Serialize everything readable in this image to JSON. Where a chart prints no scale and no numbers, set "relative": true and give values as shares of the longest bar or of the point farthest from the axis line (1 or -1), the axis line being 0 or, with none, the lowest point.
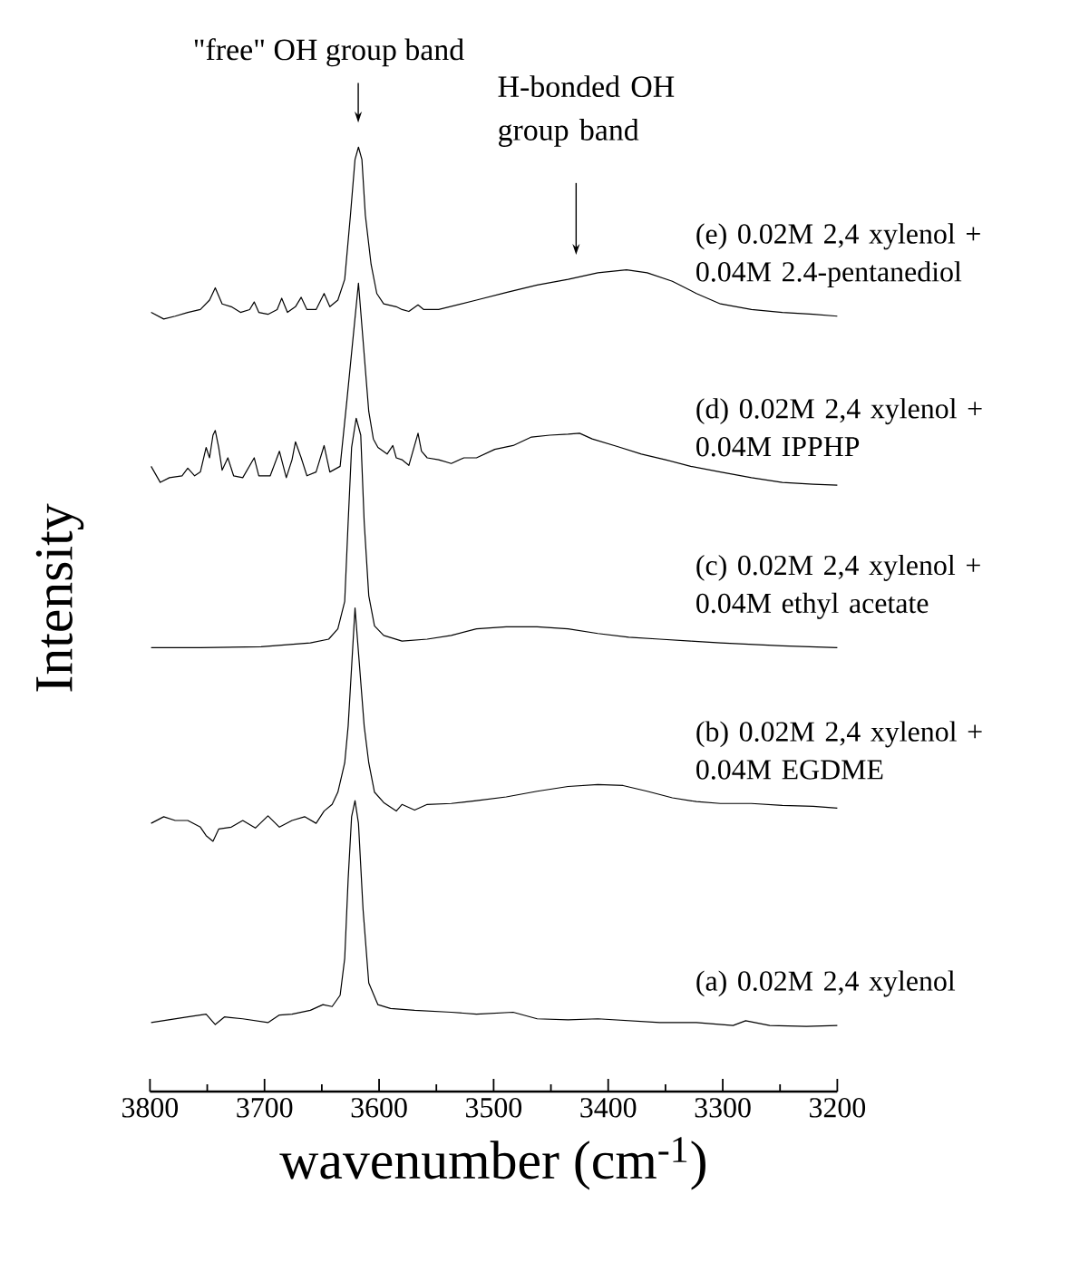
{
  "chart_data": {
    "type": "line",
    "xlabel": "wavenumber (cm$^{-1}$)",
    "ylabel": "Intensity",
    "relative": true,
    "xlim": [
      3800,
      3200
    ],
    "xticks": [
      3800,
      3700,
      3600,
      3500,
      3400,
      3300,
      3200
    ],
    "annotations": [
      "\"free\" OH group band",
      "H-bonded OH group band"
    ],
    "series": [
      {
        "name": "(e) 0.02M 2,4 xylenol + 0.04M 2.4-pentanediol",
        "color": "#000000",
        "x": [
          3799,
          3788,
          3778,
          3767,
          3756,
          3748,
          3743,
          3737,
          3729,
          3721,
          3713,
          3709,
          3705,
          3697,
          3689,
          3685,
          3680,
          3673,
          3668,
          3663,
          3655,
          3648,
          3643,
          3636,
          3630,
          3625,
          3621,
          3618,
          3615,
          3612,
          3607,
          3602,
          3596,
          3585,
          3580,
          3574,
          3566,
          3561,
          3548,
          3515,
          3489,
          3462,
          3435,
          3409,
          3384,
          3366,
          3344,
          3323,
          3302,
          3275,
          3248,
          3221,
          3200
        ],
        "values": [
          0.825,
          0.818,
          0.821,
          0.825,
          0.828,
          0.838,
          0.851,
          0.834,
          0.831,
          0.825,
          0.828,
          0.836,
          0.825,
          0.823,
          0.828,
          0.84,
          0.825,
          0.831,
          0.841,
          0.828,
          0.828,
          0.845,
          0.831,
          0.838,
          0.86,
          0.928,
          0.987,
          1.0,
          0.987,
          0.928,
          0.876,
          0.845,
          0.834,
          0.831,
          0.828,
          0.826,
          0.833,
          0.828,
          0.828,
          0.838,
          0.846,
          0.854,
          0.86,
          0.867,
          0.87,
          0.867,
          0.858,
          0.845,
          0.834,
          0.828,
          0.825,
          0.823,
          0.821
        ]
      },
      {
        "name": "(d) 0.02M 2,4 xylenol + 0.04M IPPHP",
        "color": "#000000",
        "x": [
          3799,
          3791,
          3783,
          3772,
          3767,
          3761,
          3756,
          3751,
          3748,
          3745,
          3743,
          3740,
          3737,
          3732,
          3727,
          3719,
          3709,
          3705,
          3695,
          3687,
          3681,
          3676,
          3673,
          3668,
          3663,
          3655,
          3648,
          3643,
          3634,
          3628,
          3618,
          3609,
          3605,
          3601,
          3593,
          3588,
          3585,
          3580,
          3574,
          3566,
          3563,
          3558,
          3548,
          3537,
          3526,
          3515,
          3499,
          3483,
          3467,
          3451,
          3435,
          3425,
          3414,
          3392,
          3371,
          3350,
          3328,
          3302,
          3275,
          3248,
          3221,
          3200
        ],
        "values": [
          0.662,
          0.645,
          0.65,
          0.652,
          0.66,
          0.652,
          0.656,
          0.682,
          0.671,
          0.695,
          0.7,
          0.682,
          0.658,
          0.671,
          0.652,
          0.65,
          0.671,
          0.652,
          0.652,
          0.678,
          0.65,
          0.669,
          0.688,
          0.671,
          0.652,
          0.656,
          0.684,
          0.656,
          0.662,
          0.733,
          0.856,
          0.72,
          0.691,
          0.682,
          0.675,
          0.684,
          0.671,
          0.669,
          0.663,
          0.697,
          0.678,
          0.671,
          0.669,
          0.665,
          0.671,
          0.671,
          0.68,
          0.684,
          0.693,
          0.695,
          0.696,
          0.697,
          0.691,
          0.683,
          0.675,
          0.669,
          0.662,
          0.656,
          0.65,
          0.645,
          0.643,
          0.642
        ]
      },
      {
        "name": "(c) 0.02M 2,4 xylenol + 0.04M ethyl acetate",
        "color": "#000000",
        "x": [
          3799,
          3756,
          3703,
          3660,
          3644,
          3636,
          3630,
          3627,
          3624,
          3620,
          3616,
          3613,
          3609,
          3604,
          3596,
          3580,
          3558,
          3537,
          3515,
          3489,
          3462,
          3435,
          3409,
          3382,
          3355,
          3328,
          3302,
          3248,
          3200
        ],
        "values": [
          0.47,
          0.47,
          0.471,
          0.475,
          0.479,
          0.49,
          0.519,
          0.603,
          0.682,
          0.713,
          0.695,
          0.603,
          0.525,
          0.493,
          0.483,
          0.477,
          0.479,
          0.483,
          0.49,
          0.492,
          0.492,
          0.49,
          0.485,
          0.481,
          0.479,
          0.477,
          0.475,
          0.472,
          0.47
        ]
      },
      {
        "name": "(b) 0.02M 2,4 xylenol + 0.04M EGDME",
        "color": "#000000",
        "x": [
          3799,
          3788,
          3778,
          3767,
          3756,
          3751,
          3745,
          3740,
          3729,
          3719,
          3708,
          3697,
          3687,
          3676,
          3665,
          3655,
          3648,
          3641,
          3636,
          3630,
          3627,
          3621,
          3613,
          3609,
          3604,
          3596,
          3585,
          3580,
          3569,
          3558,
          3537,
          3515,
          3489,
          3462,
          3435,
          3409,
          3387,
          3366,
          3344,
          3323,
          3302,
          3275,
          3248,
          3221,
          3200
        ],
        "values": [
          0.284,
          0.291,
          0.287,
          0.287,
          0.28,
          0.271,
          0.265,
          0.278,
          0.28,
          0.287,
          0.279,
          0.292,
          0.28,
          0.287,
          0.291,
          0.284,
          0.297,
          0.304,
          0.317,
          0.348,
          0.387,
          0.512,
          0.387,
          0.348,
          0.317,
          0.306,
          0.297,
          0.304,
          0.298,
          0.304,
          0.305,
          0.308,
          0.312,
          0.318,
          0.323,
          0.325,
          0.324,
          0.318,
          0.311,
          0.307,
          0.305,
          0.305,
          0.303,
          0.302,
          0.3
        ]
      },
      {
        "name": "(a) 0.02M 2,4 xylenol",
        "color": "#000000",
        "x": [
          3799,
          3783,
          3767,
          3751,
          3743,
          3735,
          3719,
          3697,
          3687,
          3676,
          3660,
          3649,
          3641,
          3634,
          3630,
          3627,
          3624,
          3621,
          3618,
          3614,
          3609,
          3601,
          3590,
          3569,
          3537,
          3515,
          3483,
          3462,
          3435,
          3409,
          3382,
          3355,
          3323,
          3291,
          3280,
          3259,
          3227,
          3200
        ],
        "values": [
          0.073,
          0.076,
          0.079,
          0.082,
          0.071,
          0.079,
          0.077,
          0.073,
          0.081,
          0.082,
          0.086,
          0.092,
          0.09,
          0.102,
          0.141,
          0.225,
          0.291,
          0.308,
          0.284,
          0.193,
          0.115,
          0.092,
          0.088,
          0.086,
          0.084,
          0.082,
          0.084,
          0.077,
          0.076,
          0.077,
          0.075,
          0.073,
          0.073,
          0.07,
          0.075,
          0.07,
          0.069,
          0.07
        ]
      }
    ]
  }
}
